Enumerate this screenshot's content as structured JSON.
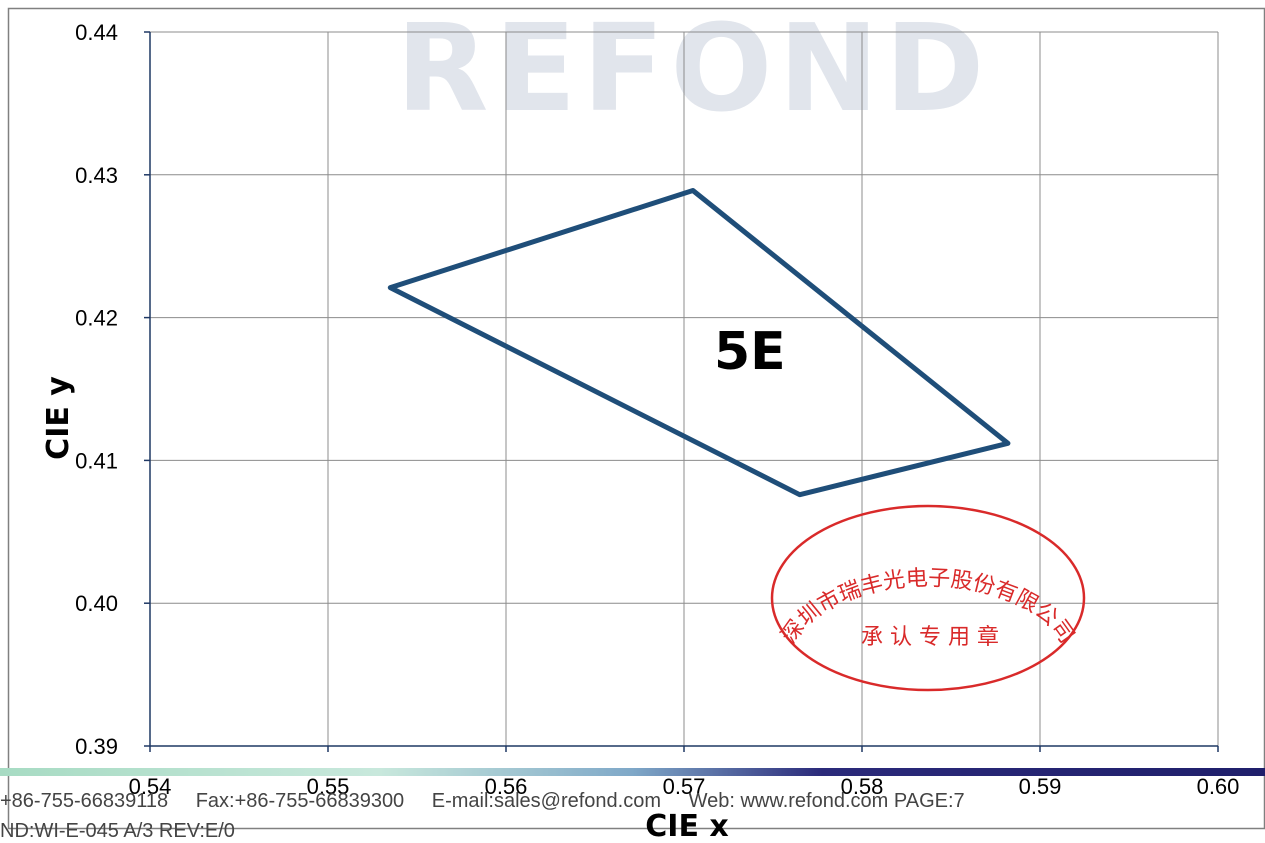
{
  "chart_data": {
    "type": "line",
    "title": "",
    "xlabel": "CIE  x",
    "ylabel": "CIE  y",
    "xlim": [
      0.54,
      0.6
    ],
    "ylim": [
      0.39,
      0.44
    ],
    "x_ticks": [
      "0.54",
      "0.55",
      "0.56",
      "0.57",
      "0.58",
      "0.59",
      "0.60"
    ],
    "y_ticks": [
      "0.39",
      "0.40",
      "0.41",
      "0.42",
      "0.43",
      "0.44"
    ],
    "grid": true,
    "series": [
      {
        "name": "5E",
        "closed": true,
        "color": "#1f4e79",
        "points": [
          {
            "x": 0.5535,
            "y": 0.4221
          },
          {
            "x": 0.5705,
            "y": 0.4289
          },
          {
            "x": 0.5882,
            "y": 0.4112
          },
          {
            "x": 0.5765,
            "y": 0.4076
          }
        ]
      }
    ],
    "annotations": [
      {
        "text": "5E",
        "x": 0.5737,
        "y": 0.4164
      }
    ]
  },
  "watermark": {
    "text": "REFOND",
    "color": "#e1e5ec"
  },
  "stamp": {
    "color": "#d92a2a",
    "arc_text": "深圳市瑞丰光电子股份有限公司",
    "center_text": "承 认 专 用 章"
  },
  "footer": {
    "tel": "+86-755-66839118",
    "fax": "Fax:+86-755-66839300",
    "email": "E-mail:sales@refond.com",
    "web": "Web: www.refond.com",
    "page": "PAGE:7",
    "doc": "ND:WI-E-045   A/3 REV:E/0"
  }
}
